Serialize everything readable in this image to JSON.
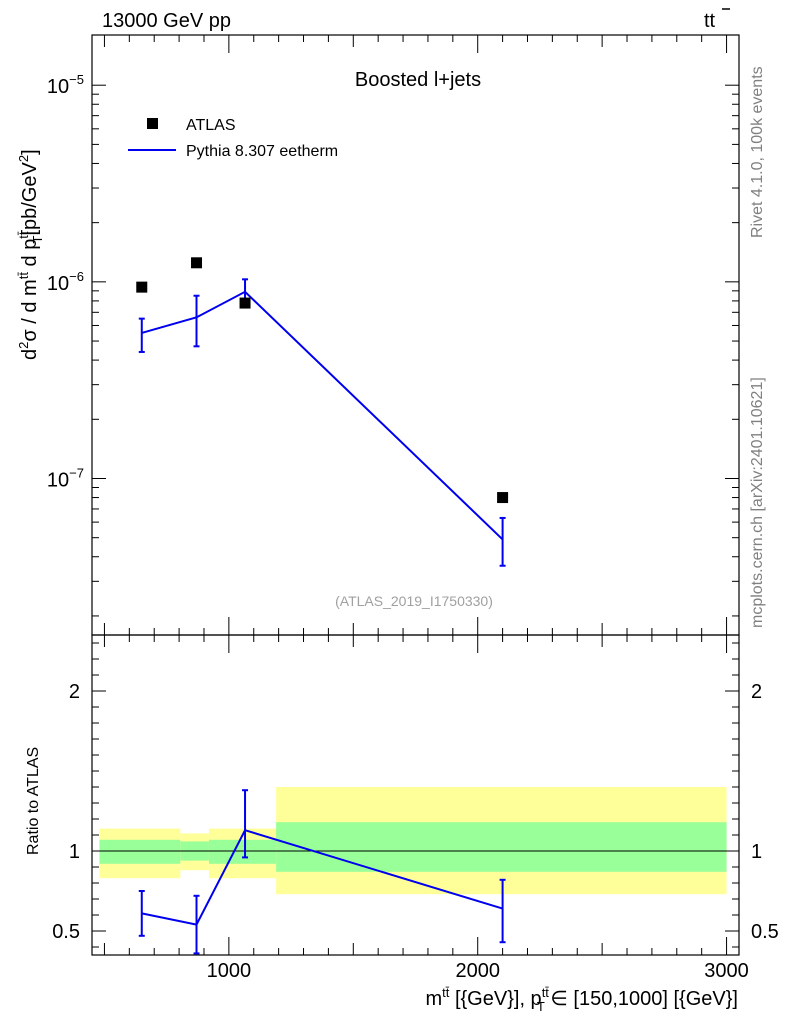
{
  "header": {
    "left_title": "13000 GeV pp",
    "right_title_base": "tt",
    "right_title_bar": "̅"
  },
  "side_labels": {
    "rivet": "Rivet 4.1.0,  100k events",
    "source": "mcplots.cern.ch [arXiv:2401.10621]"
  },
  "chart_data": [
    {
      "panel": "main",
      "type": "scatter",
      "title": "Boosted l+jets",
      "analysis_tag": "(ATLAS_2019_I1750330)",
      "ylabel": "d²σ / d m^tt̄ d p_T^tt̄ [pb/GeV²]",
      "yscale": "log",
      "xlim": [
        450,
        3050
      ],
      "ylim": [
        1.6e-08,
        1.8e-05
      ],
      "y_ticks": [
        {
          "value": 1e-07,
          "label": "10",
          "exp": "−7"
        },
        {
          "value": 1e-06,
          "label": "10",
          "exp": "−6"
        },
        {
          "value": 1e-05,
          "label": "10",
          "exp": "−5"
        }
      ],
      "legend": {
        "position": "top-left",
        "entries": [
          {
            "name": "ATLAS",
            "marker": "square",
            "color": "#000000"
          },
          {
            "name": "Pythia 8.307 eetherm",
            "marker": "line",
            "color": "#0000ee"
          }
        ]
      },
      "series": [
        {
          "name": "ATLAS",
          "x": [
            650,
            870,
            1065,
            2100
          ],
          "y": [
            9.4e-07,
            1.25e-06,
            7.8e-07,
            8e-08
          ]
        },
        {
          "name": "Pythia 8.307 eetherm",
          "x": [
            650,
            870,
            1065,
            2100
          ],
          "y": [
            5.5e-07,
            6.6e-07,
            8.9e-07,
            4.9e-08
          ],
          "err_low": [
            4.4e-07,
            4.7e-07,
            7.7e-07,
            3.6e-08
          ],
          "err_high": [
            6.5e-07,
            8.5e-07,
            1.03e-06,
            6.3e-08
          ]
        }
      ]
    },
    {
      "panel": "ratio",
      "type": "line",
      "ylabel": "Ratio to ATLAS",
      "xlabel": "m^tt̄ [{GeV}], p_T^tt̄ ∈ [150,1000] [{GeV}]",
      "xlim": [
        450,
        3050
      ],
      "ylim": [
        0.35,
        2.35
      ],
      "x_ticks": [
        1000,
        2000,
        3000
      ],
      "y_ticks": [
        0.5,
        1,
        2
      ],
      "bins": [
        {
          "x_low": 480,
          "x_high": 805,
          "inner": [
            0.92,
            1.07
          ],
          "outer": [
            0.83,
            1.14
          ]
        },
        {
          "x_low": 805,
          "x_high": 920,
          "inner": [
            0.94,
            1.06
          ],
          "outer": [
            0.88,
            1.11
          ]
        },
        {
          "x_low": 920,
          "x_high": 1190,
          "inner": [
            0.92,
            1.07
          ],
          "outer": [
            0.83,
            1.14
          ]
        },
        {
          "x_low": 1190,
          "x_high": 3000,
          "inner": [
            0.87,
            1.18
          ],
          "outer": [
            0.73,
            1.4
          ]
        }
      ],
      "series": [
        {
          "name": "Pythia 8.307 eetherm / ATLAS",
          "x": [
            650,
            870,
            1065,
            2100
          ],
          "y": [
            0.61,
            0.54,
            1.13,
            0.64
          ],
          "err_low": [
            0.47,
            0.36,
            0.96,
            0.43
          ],
          "err_high": [
            0.75,
            0.72,
            1.38,
            0.82
          ]
        }
      ]
    }
  ],
  "colors": {
    "mc_line": "#0000ee",
    "band_inner": "#99ff99",
    "band_outer": "#ffff99",
    "data": "#000000"
  }
}
